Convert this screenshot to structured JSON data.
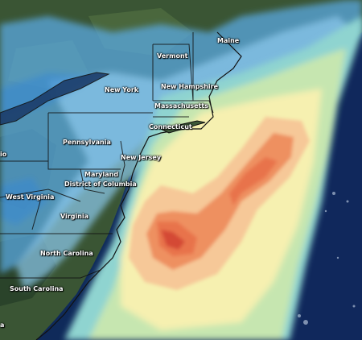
{
  "labels": {
    "maine": "Maine",
    "vermont": "Vermont",
    "new_york": "New York",
    "new_hampshire": "New Hampshire",
    "massachusetts": "Massachusetts",
    "connecticut": "Connecticut",
    "pennsylvania": "Pennsylvania",
    "new_jersey": "New Jersey",
    "maryland": "Maryland",
    "district_of_columbia": "District of Columbia",
    "west_virginia": "West Virginia",
    "virginia": "Virginia",
    "north_carolina": "North Carolina",
    "south_carolina": "South Carolina",
    "edge_io": "io",
    "edge_a": "a"
  },
  "colors": {
    "land_dark": "#2f4a30",
    "land_mid": "#4a6a3c",
    "ocean": "#0f2a5a",
    "precip_light_blue": "#7fbfe6",
    "precip_blue": "#3b8fd6",
    "precip_cyan": "#8fd4d0",
    "precip_green": "#c6e6b0",
    "precip_yellow": "#f6f0b0",
    "precip_peach": "#f6c898",
    "precip_orange": "#ee9060",
    "precip_red": "#d85038",
    "border": "#000000"
  }
}
